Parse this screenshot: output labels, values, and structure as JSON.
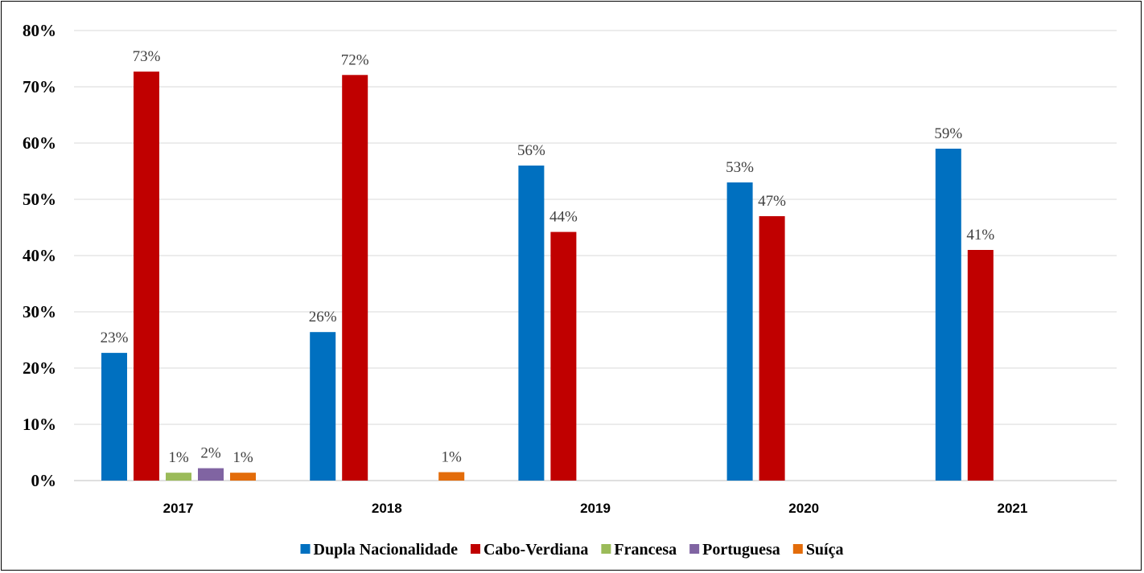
{
  "chart_data": {
    "type": "bar",
    "categories": [
      "2017",
      "2018",
      "2019",
      "2020",
      "2021"
    ],
    "series": [
      {
        "name": "Dupla Nacionalidade",
        "color": "#0070C0",
        "values": [
          22.7,
          26.4,
          56,
          53,
          59
        ],
        "labels": [
          "23%",
          "26%",
          "56%",
          "53%",
          "59%"
        ]
      },
      {
        "name": "Cabo-Verdiana",
        "color": "#C00000",
        "values": [
          72.7,
          72.1,
          44.2,
          47,
          41
        ],
        "labels": [
          "73%",
          "72%",
          "44%",
          "47%",
          "41%"
        ]
      },
      {
        "name": "Francesa",
        "color": "#9BBB59",
        "values": [
          1.4,
          null,
          null,
          null,
          null
        ],
        "labels": [
          "1%",
          "",
          "",
          "",
          ""
        ]
      },
      {
        "name": "Portuguesa",
        "color": "#8064A2",
        "values": [
          2.2,
          null,
          null,
          null,
          null
        ],
        "labels": [
          "2%",
          "",
          "",
          "",
          ""
        ]
      },
      {
        "name": "Suíça",
        "color": "#E36C0A",
        "values": [
          1.4,
          1.5,
          null,
          null,
          null
        ],
        "labels": [
          "1%",
          "1%",
          "",
          "",
          ""
        ]
      }
    ],
    "yticks": [
      "0%",
      "10%",
      "20%",
      "30%",
      "40%",
      "50%",
      "60%",
      "70%",
      "80%"
    ],
    "ylim": [
      0,
      80
    ],
    "grid": true,
    "legend": "bottom",
    "title": "",
    "xlabel": "",
    "ylabel": ""
  }
}
